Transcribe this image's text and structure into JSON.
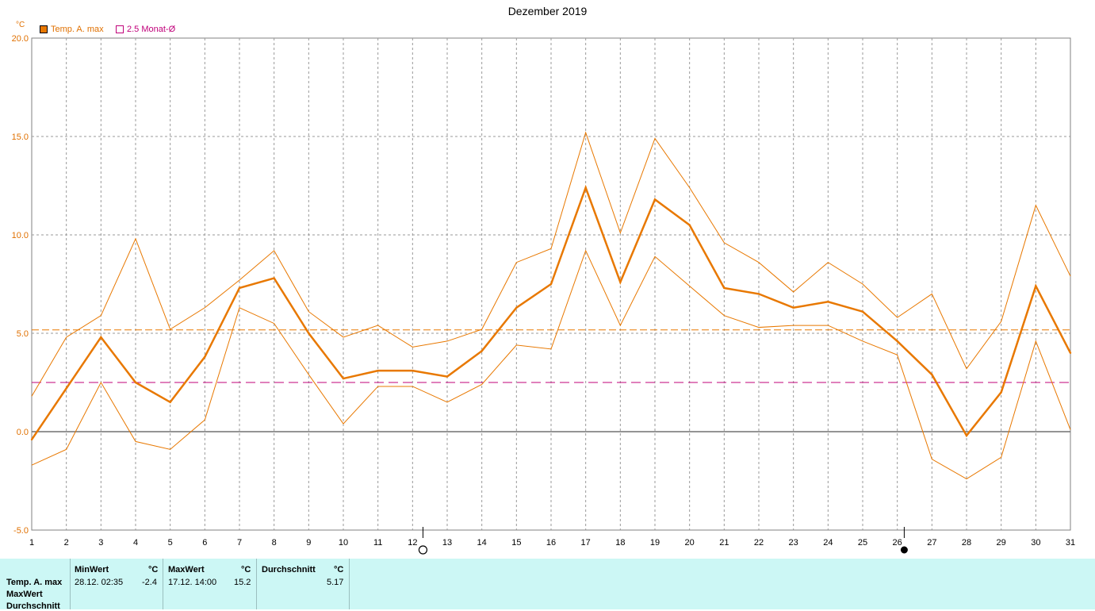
{
  "chart_data": {
    "type": "line",
    "title": "Dezember 2019",
    "y_unit": "°C",
    "ylim": [
      -5,
      20
    ],
    "y_ticks": [
      "20.0",
      "15.0",
      "10.0",
      "5.0",
      "0.0",
      "-5.0"
    ],
    "categories": [
      "1",
      "2",
      "3",
      "4",
      "5",
      "6",
      "7",
      "8",
      "9",
      "10",
      "11",
      "12",
      "13",
      "14",
      "15",
      "16",
      "17",
      "18",
      "19",
      "20",
      "21",
      "22",
      "23",
      "24",
      "25",
      "26",
      "27",
      "28",
      "29",
      "30",
      "31"
    ],
    "series": [
      {
        "name": "Temp. A. max",
        "color": "#e87800",
        "values": [
          -0.4,
          2.2,
          4.8,
          2.5,
          1.5,
          3.8,
          7.3,
          7.8,
          5.0,
          2.7,
          3.1,
          3.1,
          2.8,
          4.1,
          6.3,
          7.5,
          12.4,
          7.6,
          11.8,
          10.5,
          7.3,
          7.0,
          6.3,
          6.6,
          6.1,
          4.6,
          2.9,
          -0.2,
          2.0,
          7.4,
          4.0
        ]
      },
      {
        "color": "#e87800",
        "values": [
          1.8,
          4.8,
          5.9,
          9.8,
          5.2,
          6.3,
          7.7,
          9.2,
          6.1,
          4.8,
          5.4,
          4.3,
          4.6,
          5.2,
          8.6,
          9.3,
          15.2,
          10.1,
          14.9,
          12.4,
          9.6,
          8.6,
          7.1,
          8.6,
          7.5,
          5.8,
          7.0,
          3.2,
          5.6,
          11.5,
          7.9
        ]
      },
      {
        "color": "#e87800",
        "values": [
          -1.7,
          -0.9,
          2.5,
          -0.5,
          -0.9,
          0.6,
          6.3,
          5.5,
          2.9,
          0.4,
          2.3,
          2.3,
          1.5,
          2.4,
          4.4,
          4.2,
          9.2,
          5.4,
          8.9,
          7.4,
          5.9,
          5.3,
          5.4,
          5.4,
          4.6,
          3.9,
          -1.4,
          -2.4,
          -1.3,
          4.6,
          0.1
        ]
      }
    ],
    "reference_lines": [
      {
        "value": 5.17,
        "color": "#e87800"
      },
      {
        "name": "2.5 Monat-Ø",
        "value": 2.5,
        "color": "#c0007a"
      }
    ],
    "moon_phases": [
      {
        "day": 12.3,
        "phase": "full"
      },
      {
        "day": 26.2,
        "phase": "new"
      }
    ],
    "legend": [
      {
        "label": "Temp. A. max",
        "color": "#e87800"
      },
      {
        "label": "2.5 Monat-Ø",
        "color": "#c0007a"
      }
    ],
    "grid": true
  },
  "stats": {
    "row_labels": [
      "Temp. A. max",
      "MaxWert",
      "Durchschnitt"
    ],
    "min_header": "MinWert",
    "min_unit": "°C",
    "min_date": "28.12.  02:35",
    "min_value": "-2.4",
    "max_header": "MaxWert",
    "max_unit": "°C",
    "max_date": "17.12.  14:00",
    "max_value": "15.2",
    "avg_header": "Durchschnitt",
    "avg_unit": "°C",
    "avg_value": "5.17"
  }
}
